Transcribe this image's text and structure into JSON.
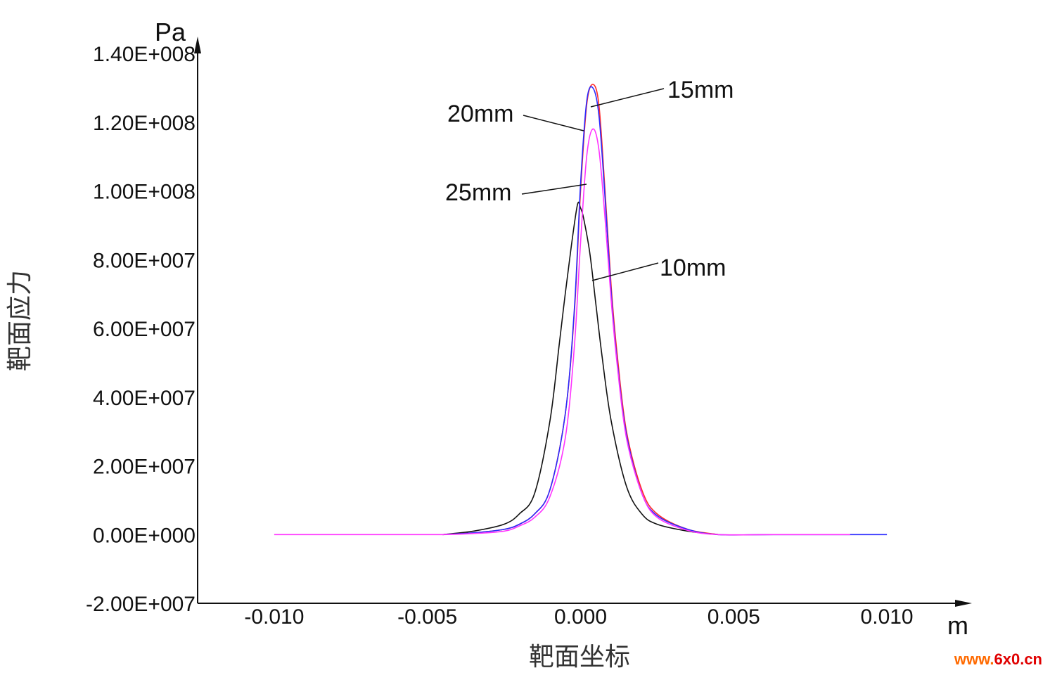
{
  "chart_data": {
    "type": "line",
    "title": "",
    "xlabel": "靶面坐标",
    "ylabel": "靶面应力",
    "x_unit": "m",
    "y_unit": "Pa",
    "xlim": [
      -0.0125,
      0.0125
    ],
    "ylim": [
      -20000000,
      140000000
    ],
    "x_ticks": [
      "-0.010",
      "-0.005",
      "0.000",
      "0.005",
      "0.010"
    ],
    "x_tick_values": [
      -0.01,
      -0.005,
      0.0,
      0.005,
      0.01
    ],
    "y_ticks": [
      "-2.00E+007",
      "0.00E+000",
      "2.00E+007",
      "4.00E+007",
      "6.00E+007",
      "8.00E+007",
      "1.00E+008",
      "1.20E+008",
      "1.40E+008"
    ],
    "y_tick_values": [
      -20000000,
      0,
      20000000,
      40000000,
      60000000,
      80000000,
      100000000,
      120000000,
      140000000
    ],
    "grid": false,
    "legend": "none",
    "series": [
      {
        "name": "10mm",
        "color": "#111111",
        "x": [
          -0.0045,
          -0.0035,
          -0.0025,
          -0.002,
          -0.0015,
          -0.001,
          -0.0007,
          -0.0005,
          -0.0003,
          -0.0001,
          0.0,
          0.0001,
          0.0003,
          0.0005,
          0.0007,
          0.001,
          0.0015,
          0.002,
          0.0025,
          0.0035,
          0.0045
        ],
        "y": [
          0,
          1000000,
          3000000,
          6000000,
          12000000,
          33000000,
          55000000,
          70000000,
          84000000,
          96000000,
          95000000,
          92000000,
          82000000,
          67000000,
          52000000,
          33000000,
          14000000,
          6000000,
          3000000,
          1000000,
          0
        ]
      },
      {
        "name": "15mm",
        "color": "#ff2a2a",
        "x": [
          -0.0045,
          -0.0035,
          -0.0025,
          -0.002,
          -0.0015,
          -0.001,
          -0.0005,
          -0.0002,
          0.0,
          0.0002,
          0.0004,
          0.0006,
          0.0008,
          0.001,
          0.0012,
          0.0015,
          0.002,
          0.0025,
          0.0035,
          0.0045
        ],
        "y": [
          0,
          500000,
          1500000,
          3000000,
          6000000,
          13000000,
          35000000,
          65000000,
          100000000,
          125000000,
          131000000,
          125000000,
          100000000,
          72000000,
          52000000,
          30000000,
          13000000,
          6000000,
          1500000,
          0
        ]
      },
      {
        "name": "20mm",
        "color": "#2a2aff",
        "x": [
          -0.0045,
          -0.0035,
          -0.0025,
          -0.002,
          -0.0015,
          -0.001,
          -0.0005,
          -0.0002,
          0.0,
          0.0002,
          0.0004,
          0.0006,
          0.0008,
          0.001,
          0.0012,
          0.0015,
          0.002,
          0.0025,
          0.0035,
          0.0045,
          0.0063,
          0.01
        ],
        "y": [
          0,
          500000,
          1500000,
          3000000,
          6000000,
          13000000,
          35000000,
          66000000,
          102000000,
          126000000,
          130000000,
          122000000,
          98000000,
          70000000,
          50000000,
          29000000,
          12000000,
          5500000,
          1500000,
          0,
          0,
          0
        ]
      },
      {
        "name": "25mm",
        "color": "#ff33ff",
        "x": [
          -0.01,
          -0.0063,
          -0.0045,
          -0.0035,
          -0.0025,
          -0.002,
          -0.0015,
          -0.001,
          -0.0005,
          -0.0002,
          0.0,
          0.0002,
          0.0004,
          0.0006,
          0.0008,
          0.001,
          0.0012,
          0.0015,
          0.002,
          0.0025,
          0.0035,
          0.0045,
          0.0063,
          0.0088
        ],
        "y": [
          0,
          0,
          0,
          300000,
          1000000,
          2500000,
          5000000,
          11000000,
          28000000,
          55000000,
          85000000,
          110000000,
          118000000,
          112000000,
          92000000,
          68000000,
          49000000,
          28000000,
          12000000,
          5000000,
          1200000,
          0,
          0,
          0
        ]
      }
    ],
    "annotations": [
      {
        "text": "20mm",
        "series": "20mm"
      },
      {
        "text": "15mm",
        "series": "15mm"
      },
      {
        "text": "25mm",
        "series": "25mm"
      },
      {
        "text": "10mm",
        "series": "10mm"
      }
    ]
  },
  "watermark": {
    "text": "www.6x0.cn"
  }
}
